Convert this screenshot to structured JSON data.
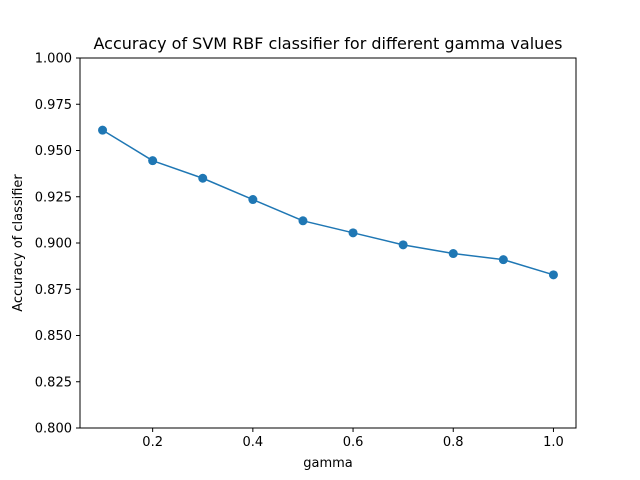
{
  "chart_data": {
    "type": "line",
    "title": "Accuracy of SVM RBF classifier for different gamma values",
    "xlabel": "gamma",
    "ylabel": "Accuracy of classifier",
    "x": [
      0.1,
      0.2,
      0.3,
      0.4,
      0.5,
      0.6,
      0.7,
      0.8,
      0.9,
      1.0
    ],
    "series": [
      {
        "values": [
          0.961,
          0.9445,
          0.935,
          0.9235,
          0.912,
          0.9055,
          0.899,
          0.8943,
          0.891,
          0.8828
        ],
        "color": "#1f77b4",
        "marker": "circle"
      }
    ],
    "xlim": [
      0.055,
      1.045
    ],
    "ylim": [
      0.8,
      1.0
    ],
    "xticks": [
      0.2,
      0.4,
      0.6,
      0.8,
      1.0
    ],
    "xtick_labels": [
      "0.2",
      "0.4",
      "0.6",
      "0.8",
      "1.0"
    ],
    "yticks": [
      0.8,
      0.825,
      0.85,
      0.875,
      0.9,
      0.925,
      0.95,
      0.975,
      1.0
    ],
    "ytick_labels": [
      "0.800",
      "0.825",
      "0.850",
      "0.875",
      "0.900",
      "0.925",
      "0.950",
      "0.975",
      "1.000"
    ],
    "grid": false,
    "legend": "none"
  }
}
